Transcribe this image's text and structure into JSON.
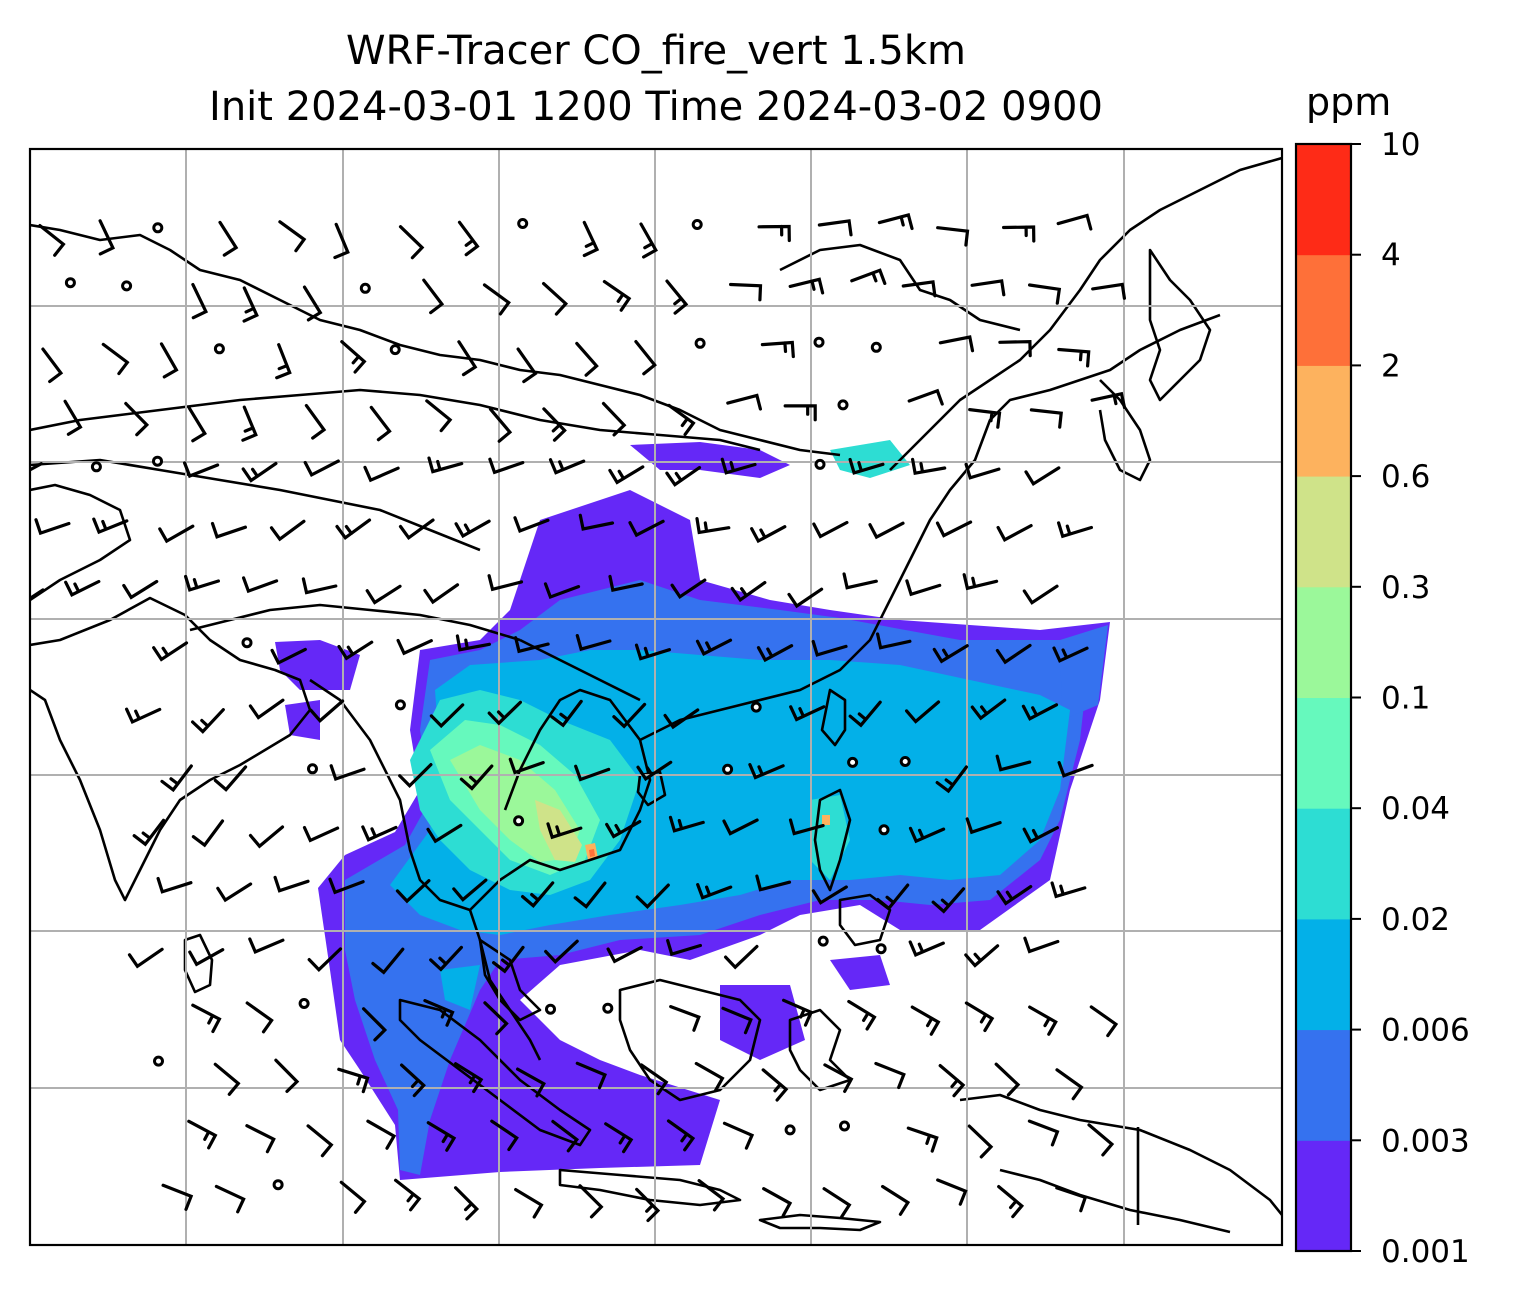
{
  "title": {
    "line1": "WRF-Tracer CO_fire_vert 1.5km",
    "line2": "Init 2024-03-01 1200 Time 2024-03-02 0900"
  },
  "colorbar": {
    "unit": "ppm",
    "levels": [
      "0.001",
      "0.003",
      "0.006",
      "0.02",
      "0.04",
      "0.1",
      "0.3",
      "0.6",
      "2",
      "4",
      "10"
    ],
    "colors": [
      "#6528f7",
      "#3572ef",
      "#03b0e8",
      "#2dddd3",
      "#66f9bd",
      "#9bf89a",
      "#cfe389",
      "#fdb25e",
      "#fe7039",
      "#fe2b17"
    ]
  },
  "map": {
    "frame_color": "#000000",
    "grid_color": "#b0b0b0",
    "coastline_color": "#000000",
    "wind_barb_color": "#000000"
  }
}
